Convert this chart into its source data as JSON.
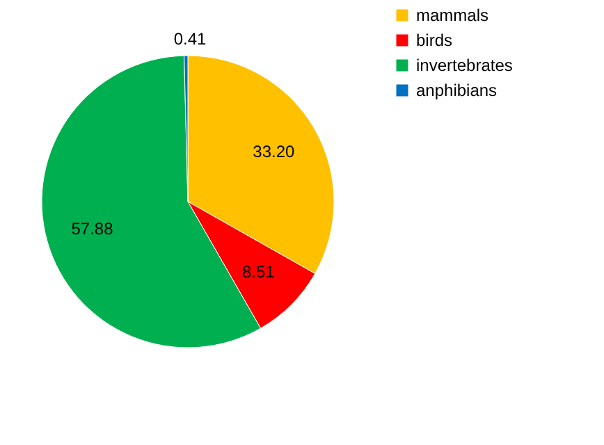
{
  "chart_data": {
    "type": "pie",
    "categories": [
      "mammals",
      "birds",
      "invertebrates",
      "anphibians"
    ],
    "values": [
      33.2,
      8.51,
      57.88,
      0.41
    ],
    "colors": [
      "#ffc000",
      "#ff0000",
      "#00b050",
      "#0070c0"
    ],
    "value_labels": [
      "33.20",
      "8.51",
      "57.88",
      "0.41"
    ],
    "legend": "right"
  }
}
